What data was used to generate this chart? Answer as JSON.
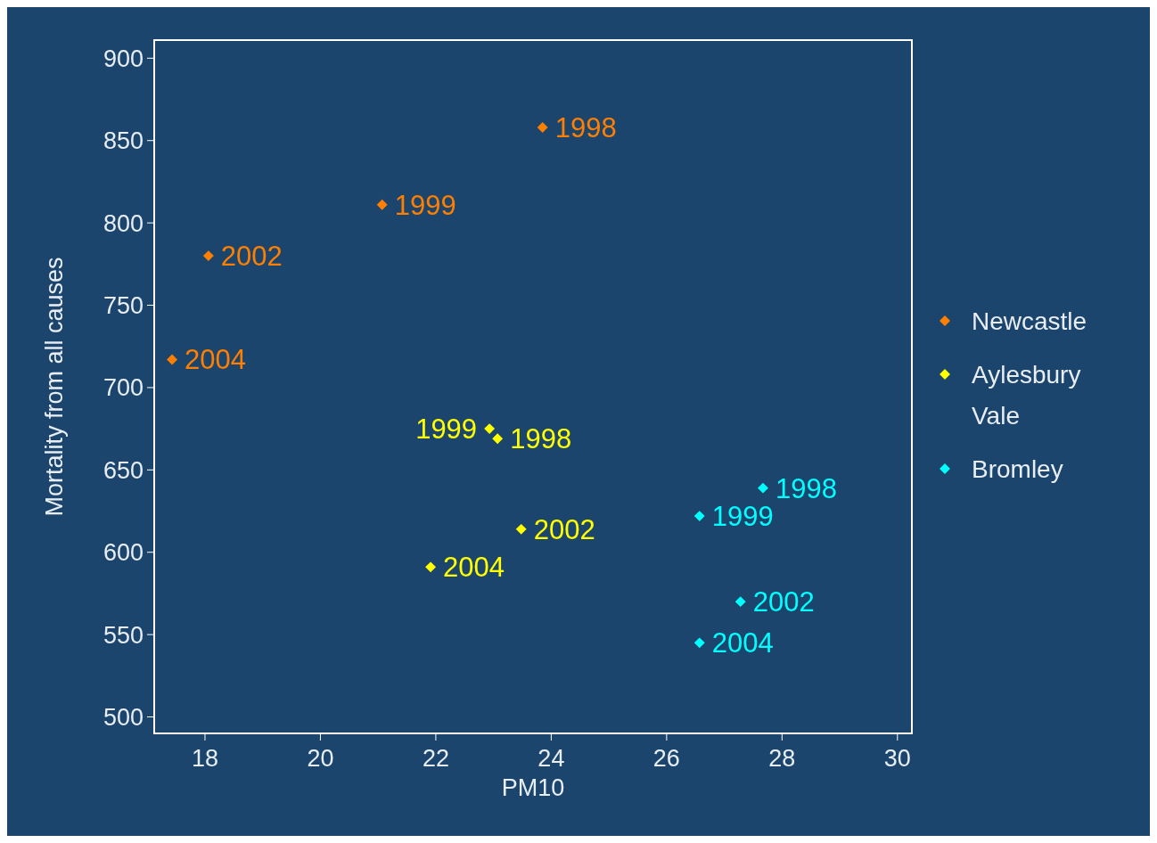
{
  "chart_data": {
    "type": "scatter",
    "xlabel": "PM10",
    "ylabel": "Mortality from all causes",
    "xlim": [
      17.12,
      30.25
    ],
    "xticks": [
      18,
      20,
      22,
      24,
      26,
      28,
      30
    ],
    "ylim": [
      490,
      911
    ],
    "yticks": [
      500,
      550,
      600,
      650,
      700,
      750,
      800,
      850,
      900
    ],
    "marker": "diamond",
    "legend": "right",
    "grid": false,
    "series": [
      {
        "name": "Newcastle",
        "color": "#ff7f00",
        "x": [
          23.85,
          21.07,
          18.06,
          17.43
        ],
        "values": [
          858,
          811,
          780,
          717
        ]
      },
      {
        "name": "Aylesbury Vale",
        "color": "#ffff00",
        "x": [
          23.07,
          22.93,
          23.48,
          21.91
        ],
        "values": [
          669,
          675,
          614,
          591
        ]
      },
      {
        "name": "Bromley",
        "color": "#00ffff",
        "x": [
          27.67,
          26.57,
          27.28,
          26.57
        ],
        "values": [
          639,
          622,
          570,
          545
        ]
      }
    ],
    "annotations": [
      {
        "text": "1998",
        "x": 23.85,
        "y": 858
      },
      {
        "text": "1999",
        "x": 21.07,
        "y": 811
      },
      {
        "text": "2002",
        "x": 18.06,
        "y": 780
      },
      {
        "text": "2004",
        "x": 17.43,
        "y": 717
      },
      {
        "text": "1998",
        "x": 23.07,
        "y": 669
      },
      {
        "text": "1999",
        "x": 22.93,
        "y": 675
      },
      {
        "text": "2002",
        "x": 23.48,
        "y": 614
      },
      {
        "text": "2004",
        "x": 21.91,
        "y": 591
      },
      {
        "text": "1998",
        "x": 27.67,
        "y": 639
      },
      {
        "text": "1999",
        "x": 26.57,
        "y": 622
      },
      {
        "text": "2002",
        "x": 27.28,
        "y": 570
      },
      {
        "text": "2004",
        "x": 26.57,
        "y": 545
      }
    ]
  }
}
